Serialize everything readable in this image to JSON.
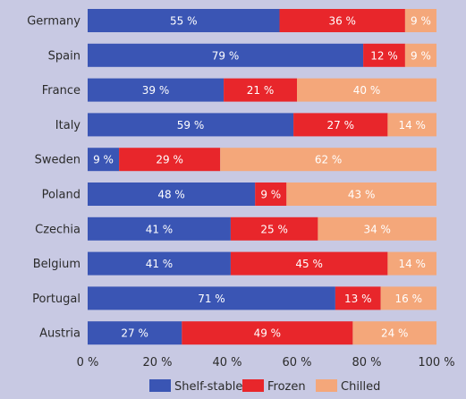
{
  "chart_data": {
    "type": "bar",
    "orientation": "horizontal",
    "stacked": true,
    "title": "",
    "xlabel": "",
    "ylabel": "",
    "xlim": [
      0,
      100
    ],
    "x_ticks": [
      "0 %",
      "20 %",
      "40 %",
      "60 %",
      "80 %",
      "100 %"
    ],
    "categories": [
      "Germany",
      "Spain",
      "France",
      "Italy",
      "Sweden",
      "Poland",
      "Czechia",
      "Belgium",
      "Portugal",
      "Austria"
    ],
    "series": [
      {
        "name": "Shelf-stable",
        "color": "#3a55b4",
        "values": [
          55,
          79,
          39,
          59,
          9,
          48,
          41,
          41,
          71,
          27
        ]
      },
      {
        "name": "Frozen",
        "color": "#e8262b",
        "values": [
          36,
          12,
          21,
          27,
          29,
          9,
          25,
          45,
          13,
          49
        ]
      },
      {
        "name": "Chilled",
        "color": "#f4a77a",
        "values": [
          9,
          9,
          40,
          14,
          62,
          43,
          34,
          14,
          16,
          24
        ]
      }
    ],
    "value_suffix": " %",
    "grid": false,
    "legend_position": "bottom"
  }
}
